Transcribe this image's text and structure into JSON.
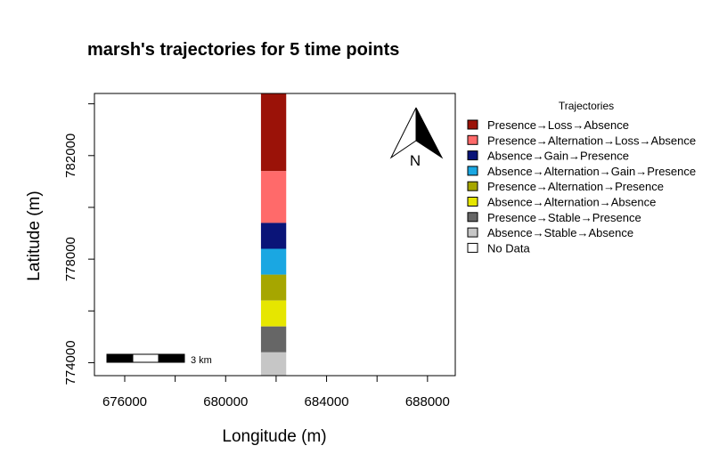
{
  "chart_data": {
    "type": "heatmap",
    "title": "marsh's trajectories for 5 time points",
    "xlabel": "Longitude (m)",
    "ylabel": "Latitude (m)",
    "xlim": [
      674800,
      689100
    ],
    "ylim": [
      773500,
      784400
    ],
    "x_ticks": [
      {
        "value": 676000,
        "label": "676000"
      },
      {
        "value": 680000,
        "label": "680000"
      },
      {
        "value": 684000,
        "label": "684000"
      },
      {
        "value": 688000,
        "label": "688000"
      }
    ],
    "x_minor_ticks": [
      678000,
      682000,
      686000
    ],
    "y_ticks": [
      {
        "value": 774000,
        "label": "774000"
      },
      {
        "value": 778000,
        "label": "778000"
      },
      {
        "value": 782000,
        "label": "782000"
      }
    ],
    "y_minor_ticks": [
      776000,
      780000,
      784000
    ],
    "column_x": [
      681400,
      682400
    ],
    "cells": [
      {
        "category": "Presence→Loss→Absence",
        "y0": 781400,
        "y1": 784400
      },
      {
        "category": "Presence→Alternation→Loss→Absence",
        "y0": 779400,
        "y1": 781400
      },
      {
        "category": "Absence→Gain→Presence",
        "y0": 778400,
        "y1": 779400
      },
      {
        "category": "Absence→Alternation→Gain→Presence",
        "y0": 777400,
        "y1": 778400
      },
      {
        "category": "Presence→Alternation→Presence",
        "y0": 776400,
        "y1": 777400
      },
      {
        "category": "Absence→Alternation→Absence",
        "y0": 775400,
        "y1": 776400
      },
      {
        "category": "Presence→Stable→Presence",
        "y0": 774400,
        "y1": 775400
      },
      {
        "category": "Absence→Stable→Absence",
        "y0": 773500,
        "y1": 774400
      }
    ],
    "legend": {
      "title": "Trajectories",
      "placement": "right",
      "entries": [
        {
          "label": "Presence→Loss→Absence",
          "color": "#9B1208"
        },
        {
          "label": "Presence→Alternation→Loss→Absence",
          "color": "#FF6A6A"
        },
        {
          "label": "Absence→Gain→Presence",
          "color": "#0A1478"
        },
        {
          "label": "Absence→Alternation→Gain→Presence",
          "color": "#1AA7E2"
        },
        {
          "label": "Presence→Alternation→Presence",
          "color": "#A6A600"
        },
        {
          "label": "Absence→Alternation→Absence",
          "color": "#E6E600"
        },
        {
          "label": "Presence→Stable→Presence",
          "color": "#666666"
        },
        {
          "label": "Absence→Stable→Absence",
          "color": "#C6C6C6"
        },
        {
          "label": "No Data",
          "color": "#FFFFFF"
        }
      ]
    },
    "scale_bar": {
      "label": "3 km",
      "length_m": 3000,
      "segments": 3
    },
    "north_arrow": {
      "label": "N"
    },
    "grid": false
  }
}
